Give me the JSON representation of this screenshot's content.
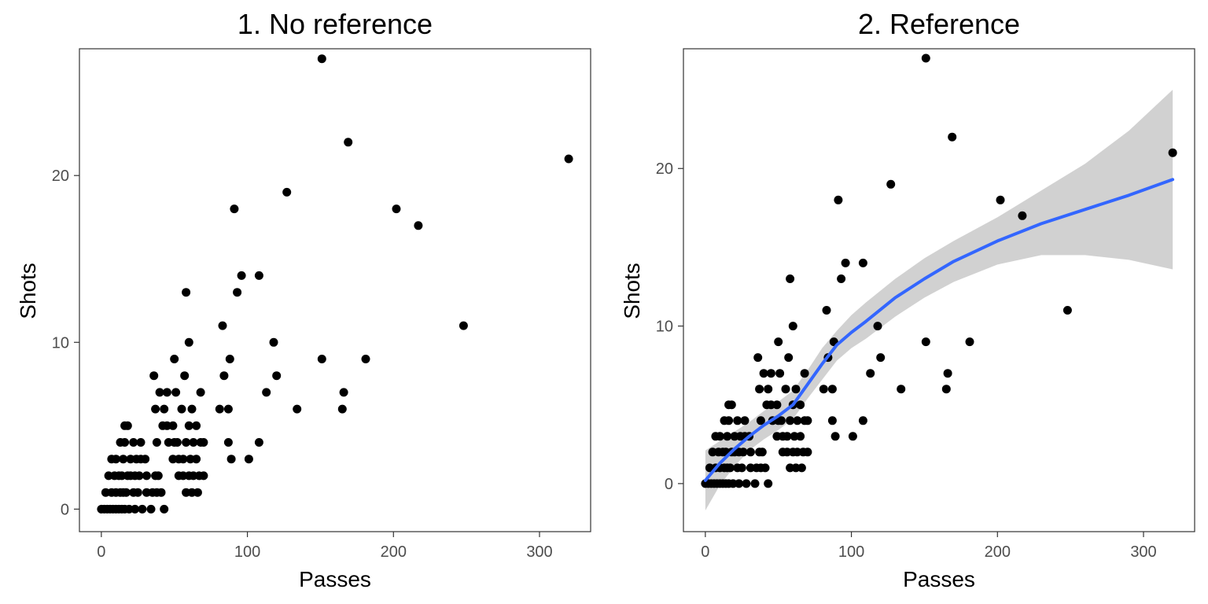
{
  "chart_data": [
    {
      "type": "scatter",
      "title": "1. No reference",
      "xlabel": "Passes",
      "ylabel": "Shots",
      "xlim": [
        -15,
        335
      ],
      "ylim": [
        -1.35,
        27.6
      ],
      "xticks": [
        0,
        100,
        200,
        300
      ],
      "yticks": [
        0,
        10,
        20
      ],
      "grid": false,
      "points": [
        [
          0,
          0
        ],
        [
          2,
          0
        ],
        [
          4,
          0
        ],
        [
          6,
          0
        ],
        [
          8,
          0
        ],
        [
          10,
          0
        ],
        [
          12,
          0
        ],
        [
          14,
          0
        ],
        [
          16,
          0
        ],
        [
          19,
          0
        ],
        [
          23,
          0
        ],
        [
          28,
          0
        ],
        [
          34,
          0
        ],
        [
          43,
          0
        ],
        [
          3,
          1
        ],
        [
          7,
          1
        ],
        [
          10,
          1
        ],
        [
          13,
          1
        ],
        [
          15,
          1
        ],
        [
          17,
          1
        ],
        [
          22,
          1
        ],
        [
          25,
          1
        ],
        [
          31,
          1
        ],
        [
          35,
          1
        ],
        [
          38,
          1
        ],
        [
          41,
          1
        ],
        [
          58,
          1
        ],
        [
          62,
          1
        ],
        [
          66,
          1
        ],
        [
          5,
          2
        ],
        [
          9,
          2
        ],
        [
          12,
          2
        ],
        [
          14,
          2
        ],
        [
          18,
          2
        ],
        [
          20,
          2
        ],
        [
          23,
          2
        ],
        [
          26,
          2
        ],
        [
          31,
          2
        ],
        [
          37,
          2
        ],
        [
          39,
          2
        ],
        [
          53,
          2
        ],
        [
          56,
          2
        ],
        [
          60,
          2
        ],
        [
          63,
          2
        ],
        [
          67,
          2
        ],
        [
          70,
          2
        ],
        [
          7,
          3
        ],
        [
          10,
          3
        ],
        [
          15,
          3
        ],
        [
          20,
          3
        ],
        [
          24,
          3
        ],
        [
          27,
          3
        ],
        [
          30,
          3
        ],
        [
          49,
          3
        ],
        [
          53,
          3
        ],
        [
          56,
          3
        ],
        [
          61,
          3
        ],
        [
          65,
          3
        ],
        [
          89,
          3
        ],
        [
          101,
          3
        ],
        [
          13,
          4
        ],
        [
          16,
          4
        ],
        [
          22,
          4
        ],
        [
          27,
          4
        ],
        [
          38,
          4
        ],
        [
          46,
          4
        ],
        [
          50,
          4
        ],
        [
          52,
          4
        ],
        [
          58,
          4
        ],
        [
          63,
          4
        ],
        [
          68,
          4
        ],
        [
          70,
          4
        ],
        [
          87,
          4
        ],
        [
          108,
          4
        ],
        [
          16,
          5
        ],
        [
          18,
          5
        ],
        [
          42,
          5
        ],
        [
          45,
          5
        ],
        [
          49,
          5
        ],
        [
          60,
          5
        ],
        [
          65,
          5
        ],
        [
          37,
          6
        ],
        [
          43,
          6
        ],
        [
          55,
          6
        ],
        [
          62,
          6
        ],
        [
          81,
          6
        ],
        [
          87,
          6
        ],
        [
          134,
          6
        ],
        [
          165,
          6
        ],
        [
          40,
          7
        ],
        [
          45,
          7
        ],
        [
          51,
          7
        ],
        [
          68,
          7
        ],
        [
          113,
          7
        ],
        [
          166,
          7
        ],
        [
          36,
          8
        ],
        [
          57,
          8
        ],
        [
          84,
          8
        ],
        [
          120,
          8
        ],
        [
          50,
          9
        ],
        [
          88,
          9
        ],
        [
          151,
          9
        ],
        [
          181,
          9
        ],
        [
          60,
          10
        ],
        [
          118,
          10
        ],
        [
          58,
          13
        ],
        [
          93,
          13
        ],
        [
          96,
          14
        ],
        [
          108,
          14
        ],
        [
          83,
          11
        ],
        [
          248,
          11
        ],
        [
          91,
          18
        ],
        [
          202,
          18
        ],
        [
          217,
          17
        ],
        [
          127,
          19
        ],
        [
          320,
          21
        ],
        [
          169,
          22
        ],
        [
          151,
          27
        ]
      ]
    },
    {
      "type": "scatter",
      "title": "2. Reference",
      "xlabel": "Passes",
      "ylabel": "Shots",
      "xlim": [
        -15,
        335
      ],
      "ylim": [
        -3.05,
        27.6
      ],
      "xticks": [
        0,
        100,
        200,
        300
      ],
      "yticks": [
        0,
        10,
        20
      ],
      "grid": false,
      "smooth_color": "#3366ff",
      "ribbon_color": "#cccccc",
      "smooth_line": [
        [
          0,
          0.2
        ],
        [
          10,
          1.3
        ],
        [
          20,
          2.2
        ],
        [
          30,
          3.0
        ],
        [
          40,
          3.7
        ],
        [
          50,
          4.3
        ],
        [
          60,
          5.0
        ],
        [
          70,
          6.3
        ],
        [
          80,
          7.6
        ],
        [
          90,
          8.8
        ],
        [
          100,
          9.6
        ],
        [
          110,
          10.3
        ],
        [
          130,
          11.8
        ],
        [
          150,
          13.0
        ],
        [
          170,
          14.1
        ],
        [
          200,
          15.4
        ],
        [
          230,
          16.5
        ],
        [
          260,
          17.4
        ],
        [
          290,
          18.3
        ],
        [
          320,
          19.3
        ]
      ],
      "smooth_ribbon_upper": [
        [
          0,
          2.1
        ],
        [
          10,
          2.7
        ],
        [
          20,
          3.3
        ],
        [
          30,
          3.9
        ],
        [
          40,
          4.6
        ],
        [
          50,
          5.2
        ],
        [
          60,
          5.9
        ],
        [
          70,
          7.2
        ],
        [
          80,
          8.6
        ],
        [
          90,
          9.7
        ],
        [
          100,
          10.7
        ],
        [
          110,
          11.5
        ],
        [
          130,
          13.0
        ],
        [
          150,
          14.3
        ],
        [
          170,
          15.4
        ],
        [
          200,
          16.9
        ],
        [
          230,
          18.6
        ],
        [
          260,
          20.3
        ],
        [
          290,
          22.4
        ],
        [
          320,
          25.0
        ]
      ],
      "smooth_ribbon_lower": [
        [
          0,
          -1.7
        ],
        [
          10,
          -0.1
        ],
        [
          20,
          1.1
        ],
        [
          30,
          2.1
        ],
        [
          40,
          2.8
        ],
        [
          50,
          3.4
        ],
        [
          60,
          4.1
        ],
        [
          70,
          5.4
        ],
        [
          80,
          6.6
        ],
        [
          90,
          7.8
        ],
        [
          100,
          8.6
        ],
        [
          110,
          9.2
        ],
        [
          130,
          10.6
        ],
        [
          150,
          11.8
        ],
        [
          170,
          12.8
        ],
        [
          200,
          13.9
        ],
        [
          230,
          14.5
        ],
        [
          260,
          14.5
        ],
        [
          290,
          14.2
        ],
        [
          320,
          13.6
        ]
      ],
      "points": [
        [
          0,
          0
        ],
        [
          2,
          0
        ],
        [
          4,
          0
        ],
        [
          6,
          0
        ],
        [
          8,
          0
        ],
        [
          10,
          0
        ],
        [
          12,
          0
        ],
        [
          14,
          0
        ],
        [
          16,
          0
        ],
        [
          19,
          0
        ],
        [
          23,
          0
        ],
        [
          28,
          0
        ],
        [
          34,
          0
        ],
        [
          43,
          0
        ],
        [
          3,
          1
        ],
        [
          7,
          1
        ],
        [
          10,
          1
        ],
        [
          13,
          1
        ],
        [
          15,
          1
        ],
        [
          17,
          1
        ],
        [
          22,
          1
        ],
        [
          25,
          1
        ],
        [
          31,
          1
        ],
        [
          35,
          1
        ],
        [
          38,
          1
        ],
        [
          41,
          1
        ],
        [
          58,
          1
        ],
        [
          62,
          1
        ],
        [
          66,
          1
        ],
        [
          5,
          2
        ],
        [
          9,
          2
        ],
        [
          12,
          2
        ],
        [
          14,
          2
        ],
        [
          18,
          2
        ],
        [
          20,
          2
        ],
        [
          23,
          2
        ],
        [
          26,
          2
        ],
        [
          31,
          2
        ],
        [
          37,
          2
        ],
        [
          39,
          2
        ],
        [
          53,
          2
        ],
        [
          56,
          2
        ],
        [
          60,
          2
        ],
        [
          63,
          2
        ],
        [
          67,
          2
        ],
        [
          70,
          2
        ],
        [
          7,
          3
        ],
        [
          10,
          3
        ],
        [
          15,
          3
        ],
        [
          20,
          3
        ],
        [
          24,
          3
        ],
        [
          27,
          3
        ],
        [
          30,
          3
        ],
        [
          49,
          3
        ],
        [
          53,
          3
        ],
        [
          56,
          3
        ],
        [
          61,
          3
        ],
        [
          65,
          3
        ],
        [
          89,
          3
        ],
        [
          101,
          3
        ],
        [
          13,
          4
        ],
        [
          16,
          4
        ],
        [
          22,
          4
        ],
        [
          27,
          4
        ],
        [
          38,
          4
        ],
        [
          46,
          4
        ],
        [
          50,
          4
        ],
        [
          52,
          4
        ],
        [
          58,
          4
        ],
        [
          63,
          4
        ],
        [
          68,
          4
        ],
        [
          70,
          4
        ],
        [
          87,
          4
        ],
        [
          108,
          4
        ],
        [
          16,
          5
        ],
        [
          18,
          5
        ],
        [
          42,
          5
        ],
        [
          45,
          5
        ],
        [
          49,
          5
        ],
        [
          60,
          5
        ],
        [
          65,
          5
        ],
        [
          37,
          6
        ],
        [
          43,
          6
        ],
        [
          55,
          6
        ],
        [
          62,
          6
        ],
        [
          81,
          6
        ],
        [
          87,
          6
        ],
        [
          134,
          6
        ],
        [
          165,
          6
        ],
        [
          40,
          7
        ],
        [
          45,
          7
        ],
        [
          51,
          7
        ],
        [
          68,
          7
        ],
        [
          113,
          7
        ],
        [
          166,
          7
        ],
        [
          36,
          8
        ],
        [
          57,
          8
        ],
        [
          84,
          8
        ],
        [
          120,
          8
        ],
        [
          50,
          9
        ],
        [
          88,
          9
        ],
        [
          151,
          9
        ],
        [
          181,
          9
        ],
        [
          60,
          10
        ],
        [
          118,
          10
        ],
        [
          58,
          13
        ],
        [
          93,
          13
        ],
        [
          96,
          14
        ],
        [
          108,
          14
        ],
        [
          83,
          11
        ],
        [
          248,
          11
        ],
        [
          91,
          18
        ],
        [
          202,
          18
        ],
        [
          217,
          17
        ],
        [
          127,
          19
        ],
        [
          320,
          21
        ],
        [
          169,
          22
        ],
        [
          151,
          27
        ]
      ]
    }
  ]
}
